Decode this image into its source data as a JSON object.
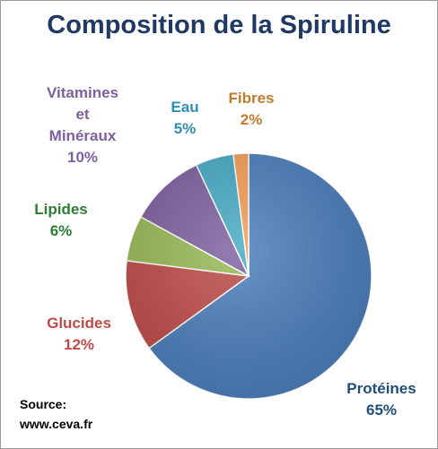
{
  "colors": {
    "title": "#1f3864",
    "Protéines": "#4a7ebb",
    "Glucides": "#be4b48",
    "Lipides": "#98b954",
    "Vitamines et Minéraux": "#7d60a0",
    "Eau": "#46aac5",
    "Fibres": "#f59d56"
  },
  "labels": {
    "proteines": [
      "Protéines",
      "65%"
    ],
    "glucides": [
      "Glucides",
      "12%"
    ],
    "lipides": [
      "Lipides",
      "6%"
    ],
    "vitamines": [
      "Vitamines",
      "et",
      "Minéraux",
      "10%"
    ],
    "eau": [
      "Eau",
      "5%"
    ],
    "fibres": [
      "Fibres",
      "2%"
    ]
  },
  "source": {
    "line1": "Source:",
    "line2": "www.ceva.fr"
  },
  "chart_data": {
    "type": "pie",
    "title": "Composition de la Spiruline",
    "categories": [
      "Protéines",
      "Glucides",
      "Lipides",
      "Vitamines et Minéraux",
      "Eau",
      "Fibres"
    ],
    "values": [
      65,
      12,
      6,
      10,
      5,
      2
    ],
    "unit": "%",
    "start_angle_deg": 0,
    "direction": "clockwise",
    "legend": "none (data labels beside slices)"
  }
}
